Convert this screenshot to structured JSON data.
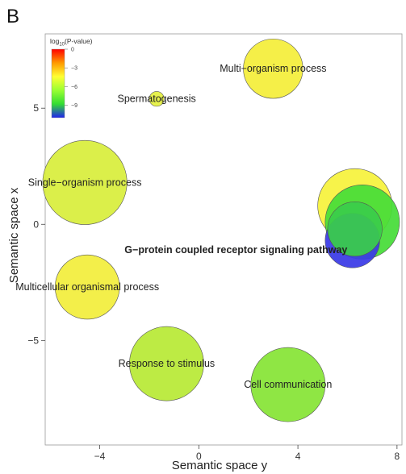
{
  "panel_label": "B",
  "chart_data": {
    "type": "scatter",
    "title": "",
    "xlabel": "Semantic space y",
    "ylabel": "Semantic space x",
    "xlim": [
      -6.2,
      8.2
    ],
    "ylim": [
      -9.5,
      8.2
    ],
    "xticks": [
      -4,
      0,
      4,
      8
    ],
    "xtick_labels": [
      "−4",
      "0",
      "4",
      "8"
    ],
    "yticks": [
      -5,
      0,
      5
    ],
    "ytick_labels": [
      "−5",
      "0",
      "5"
    ],
    "grid": false,
    "legend": {
      "title_prefix": "log",
      "title_sub": "10",
      "title_suffix": "(P-value)",
      "placement": "top-left",
      "ticks": [
        "0",
        "−3",
        "−6",
        "−9"
      ],
      "tick_values": [
        0,
        -3,
        -6,
        -9
      ],
      "range": [
        0,
        -11
      ],
      "colors": [
        "#ff0000",
        "#ff9900",
        "#ffff33",
        "#99ff33",
        "#33dd33",
        "#2222ee"
      ]
    },
    "points": [
      {
        "label": "Multi−organism process",
        "x": 3.0,
        "y": 6.7,
        "size": 1.2,
        "log10p": -4.3,
        "color": "#f4ee3a",
        "bold": false
      },
      {
        "label": "Spermatogenesis",
        "x": -1.7,
        "y": 5.4,
        "size": 0.3,
        "log10p": -4.8,
        "color": "#e4f040",
        "bold": false
      },
      {
        "label": "Single−organism process",
        "x": -4.6,
        "y": 1.8,
        "size": 1.7,
        "log10p": -4.8,
        "color": "#d8ee3c",
        "bold": false
      },
      {
        "label": "",
        "x": 6.3,
        "y": 0.8,
        "size": 1.5,
        "log10p": -4.2,
        "color": "#f6f23c",
        "bold": false
      },
      {
        "label": "",
        "x": 6.6,
        "y": 0.1,
        "size": 1.5,
        "log10p": -7.0,
        "color": "#46dd38",
        "bold": false
      },
      {
        "label": "",
        "x": 6.2,
        "y": -0.7,
        "size": 1.1,
        "log10p": -10.0,
        "color": "#3a3ae6",
        "bold": false
      },
      {
        "label": "",
        "x": 6.3,
        "y": -0.2,
        "size": 1.1,
        "log10p": -7.8,
        "color": "#3acc4a",
        "bold": false
      },
      {
        "label": "G−protein coupled receptor signaling pathway",
        "x": 1.5,
        "y": -1.1,
        "size": 0,
        "log10p": null,
        "color": "",
        "bold": true
      },
      {
        "label": "Multicellular organismal process",
        "x": -4.5,
        "y": -2.7,
        "size": 1.3,
        "log10p": -4.3,
        "color": "#f2ee3c",
        "bold": false
      },
      {
        "label": "Response to stimulus",
        "x": -1.3,
        "y": -6.0,
        "size": 1.5,
        "log10p": -5.8,
        "color": "#b8ea36",
        "bold": false
      },
      {
        "label": "Cell communication",
        "x": 3.6,
        "y": -6.9,
        "size": 1.5,
        "log10p": -6.5,
        "color": "#86e436",
        "bold": false
      }
    ]
  }
}
